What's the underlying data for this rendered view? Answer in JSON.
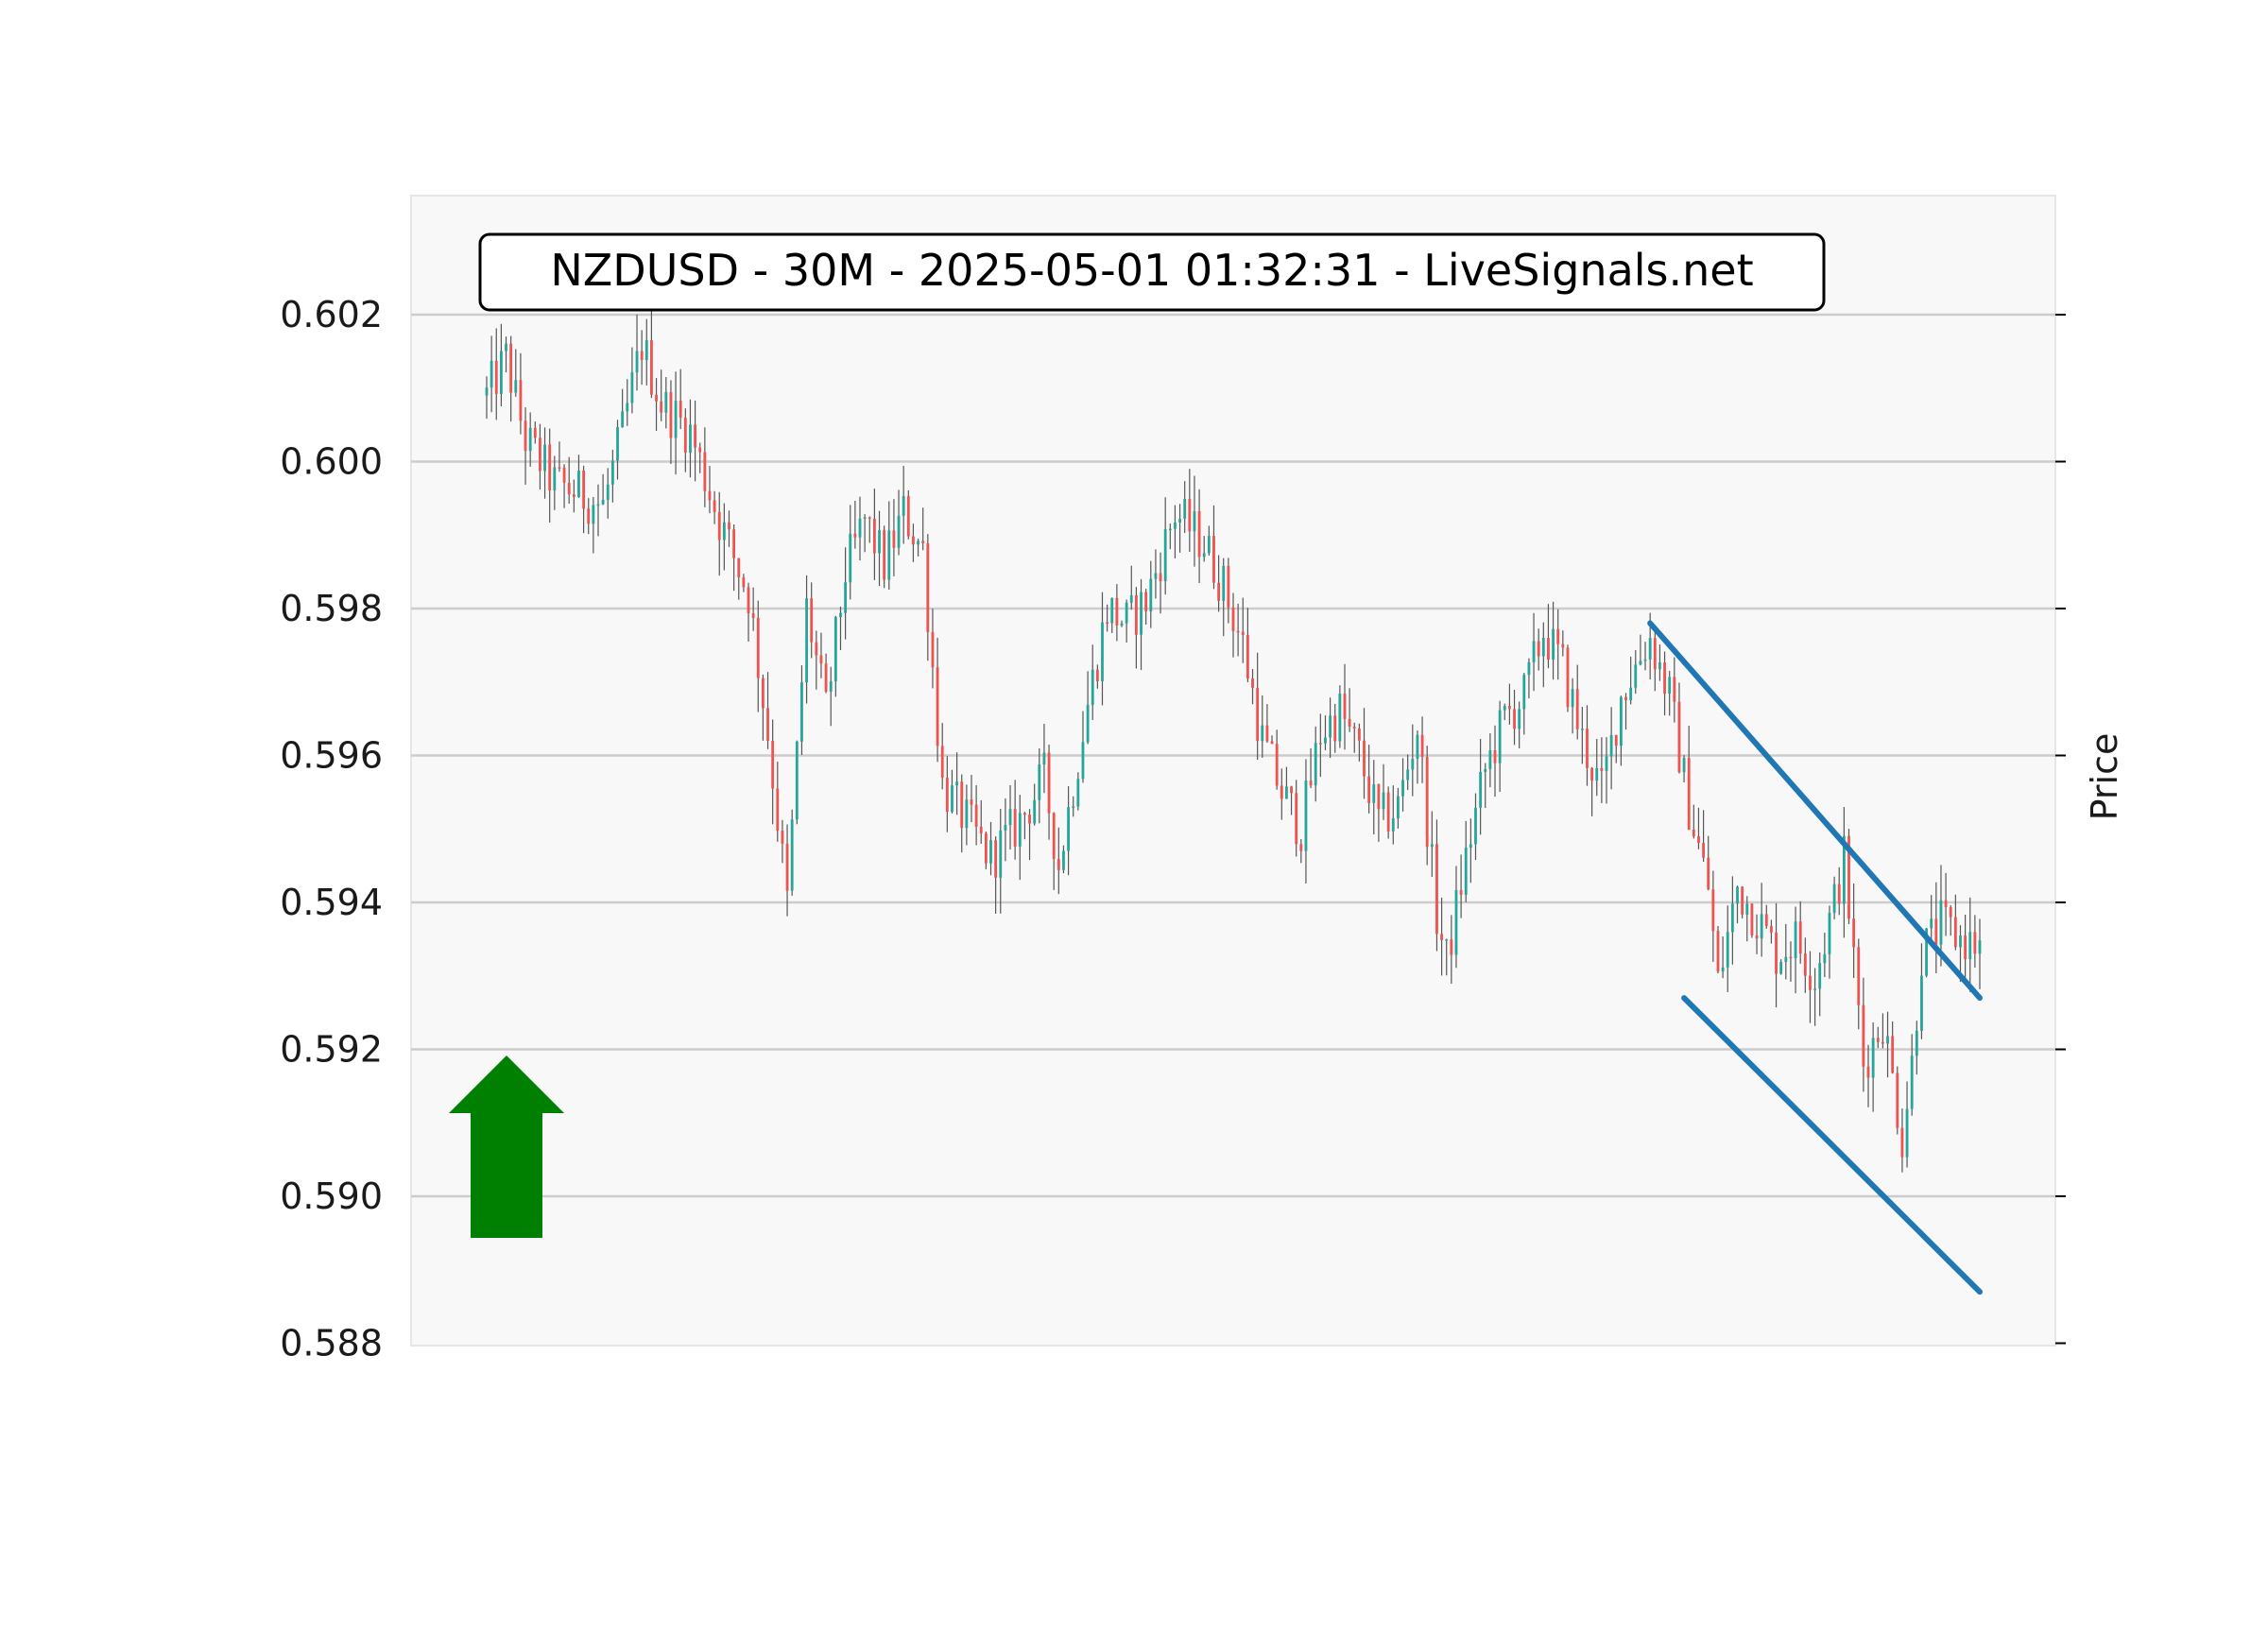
{
  "chart_data": {
    "type": "candlestick",
    "title": "NZDUSD - 30M - 2025-05-01 01:32:31 - LiveSignals.net",
    "ylabel": "Price",
    "xlabel": "",
    "ylim": [
      0.588,
      0.6036
    ],
    "yticks": [
      "0.602",
      "0.600",
      "0.598",
      "0.596",
      "0.594",
      "0.592",
      "0.590",
      "0.588"
    ],
    "ytick_values": [
      0.602,
      0.6,
      0.598,
      0.596,
      0.594,
      0.592,
      0.59,
      0.588
    ],
    "grid": true,
    "y_axis_side": "right",
    "bar_count": 240,
    "colors": {
      "up": "#26a69a",
      "down": "#ef5350",
      "wick": "#555555",
      "channel": "#1f77b4",
      "signal_arrow": "#008000",
      "plot_bg": "#f8f8f8",
      "grid": "#cccccc"
    },
    "anchors": [
      {
        "i": 0,
        "p": 0.6009
      },
      {
        "i": 4,
        "p": 0.6014
      },
      {
        "i": 8,
        "p": 0.6003
      },
      {
        "i": 14,
        "p": 0.5997
      },
      {
        "i": 18,
        "p": 0.5996
      },
      {
        "i": 24,
        "p": 0.5994
      },
      {
        "i": 28,
        "p": 0.6004
      },
      {
        "i": 32,
        "p": 0.6016
      },
      {
        "i": 36,
        "p": 0.6008
      },
      {
        "i": 42,
        "p": 0.6004
      },
      {
        "i": 48,
        "p": 0.5992
      },
      {
        "i": 54,
        "p": 0.5982
      },
      {
        "i": 58,
        "p": 0.5963
      },
      {
        "i": 62,
        "p": 0.594
      },
      {
        "i": 66,
        "p": 0.598
      },
      {
        "i": 70,
        "p": 0.5966
      },
      {
        "i": 74,
        "p": 0.5985
      },
      {
        "i": 78,
        "p": 0.5992
      },
      {
        "i": 82,
        "p": 0.5986
      },
      {
        "i": 86,
        "p": 0.5993
      },
      {
        "i": 90,
        "p": 0.5988
      },
      {
        "i": 94,
        "p": 0.5956
      },
      {
        "i": 98,
        "p": 0.5952
      },
      {
        "i": 104,
        "p": 0.5946
      },
      {
        "i": 110,
        "p": 0.5951
      },
      {
        "i": 115,
        "p": 0.5957
      },
      {
        "i": 118,
        "p": 0.5945
      },
      {
        "i": 124,
        "p": 0.5967
      },
      {
        "i": 128,
        "p": 0.598
      },
      {
        "i": 132,
        "p": 0.5978
      },
      {
        "i": 136,
        "p": 0.5981
      },
      {
        "i": 142,
        "p": 0.5993
      },
      {
        "i": 148,
        "p": 0.5989
      },
      {
        "i": 152,
        "p": 0.5983
      },
      {
        "i": 156,
        "p": 0.5975
      },
      {
        "i": 160,
        "p": 0.5962
      },
      {
        "i": 164,
        "p": 0.5955
      },
      {
        "i": 168,
        "p": 0.595
      },
      {
        "i": 172,
        "p": 0.5963
      },
      {
        "i": 176,
        "p": 0.5966
      },
      {
        "i": 180,
        "p": 0.596
      },
      {
        "i": 184,
        "p": 0.5951
      },
      {
        "i": 188,
        "p": 0.5953
      },
      {
        "i": 192,
        "p": 0.5964
      },
      {
        "i": 196,
        "p": 0.5938
      },
      {
        "i": 198,
        "p": 0.5932
      },
      {
        "i": 202,
        "p": 0.5946
      },
      {
        "i": 206,
        "p": 0.5958
      },
      {
        "i": 210,
        "p": 0.5965
      },
      {
        "i": 214,
        "p": 0.5968
      },
      {
        "i": 218,
        "p": 0.5977
      },
      {
        "i": 222,
        "p": 0.5972
      },
      {
        "i": 226,
        "p": 0.5962
      },
      {
        "i": 230,
        "p": 0.5955
      },
      {
        "i": 234,
        "p": 0.5968
      },
      {
        "i": 239,
        "p": 0.5975
      }
    ],
    "anchors_segment_2": [
      {
        "i": 240,
        "p": 0.5976
      },
      {
        "i": 244,
        "p": 0.5968
      },
      {
        "i": 248,
        "p": 0.5953
      },
      {
        "i": 252,
        "p": 0.5942
      },
      {
        "i": 254,
        "p": 0.5929
      },
      {
        "i": 258,
        "p": 0.5942
      },
      {
        "i": 262,
        "p": 0.5938
      },
      {
        "i": 266,
        "p": 0.5933
      },
      {
        "i": 270,
        "p": 0.5935
      },
      {
        "i": 274,
        "p": 0.593
      },
      {
        "i": 278,
        "p": 0.594
      },
      {
        "i": 280,
        "p": 0.5946
      },
      {
        "i": 284,
        "p": 0.5918
      },
      {
        "i": 288,
        "p": 0.5924
      },
      {
        "i": 292,
        "p": 0.5908
      },
      {
        "i": 294,
        "p": 0.5918
      },
      {
        "i": 296,
        "p": 0.5933
      },
      {
        "i": 300,
        "p": 0.5937
      },
      {
        "i": 304,
        "p": 0.5935
      },
      {
        "i": 308,
        "p": 0.5934
      }
    ],
    "channel_lines": [
      {
        "name": "upper",
        "from": {
          "i": 240,
          "p": 0.5978
        },
        "to": {
          "i": 308,
          "p": 0.5927
        }
      },
      {
        "name": "lower",
        "from": {
          "i": 247,
          "p": 0.5927
        },
        "to": {
          "i": 308,
          "p": 0.5887
        }
      }
    ],
    "signal": {
      "direction": "up",
      "icon": "up-arrow-icon"
    }
  }
}
